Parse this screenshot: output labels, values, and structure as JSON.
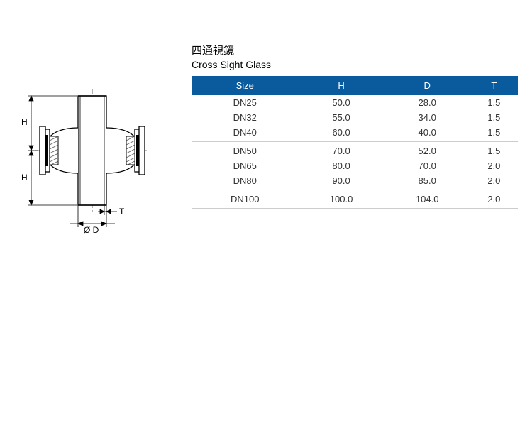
{
  "title": {
    "zh": "四通視鏡",
    "en": "Cross Sight Glass"
  },
  "diagram": {
    "labels": {
      "H_top": "H",
      "H_bottom": "H",
      "T": "T",
      "D": "Ø D"
    },
    "stroke": "#000000",
    "hatch": "#555555",
    "bg": "#ffffff"
  },
  "table": {
    "header_bg": "#0a5a9e",
    "header_fg": "#ffffff",
    "sep_color": "#cccccc",
    "columns": [
      "Size",
      "H",
      "D",
      "T"
    ],
    "groups": [
      {
        "rows": [
          {
            "size": "DN25",
            "H": "50.0",
            "D": "28.0",
            "T": "1.5"
          },
          {
            "size": "DN32",
            "H": "55.0",
            "D": "34.0",
            "T": "1.5"
          },
          {
            "size": "DN40",
            "H": "60.0",
            "D": "40.0",
            "T": "1.5"
          }
        ]
      },
      {
        "rows": [
          {
            "size": "DN50",
            "H": "70.0",
            "D": "52.0",
            "T": "1.5"
          },
          {
            "size": "DN65",
            "H": "80.0",
            "D": "70.0",
            "T": "2.0"
          },
          {
            "size": "DN80",
            "H": "90.0",
            "D": "85.0",
            "T": "2.0"
          }
        ]
      },
      {
        "rows": [
          {
            "size": "DN100",
            "H": "100.0",
            "D": "104.0",
            "T": "2.0"
          }
        ]
      }
    ]
  }
}
